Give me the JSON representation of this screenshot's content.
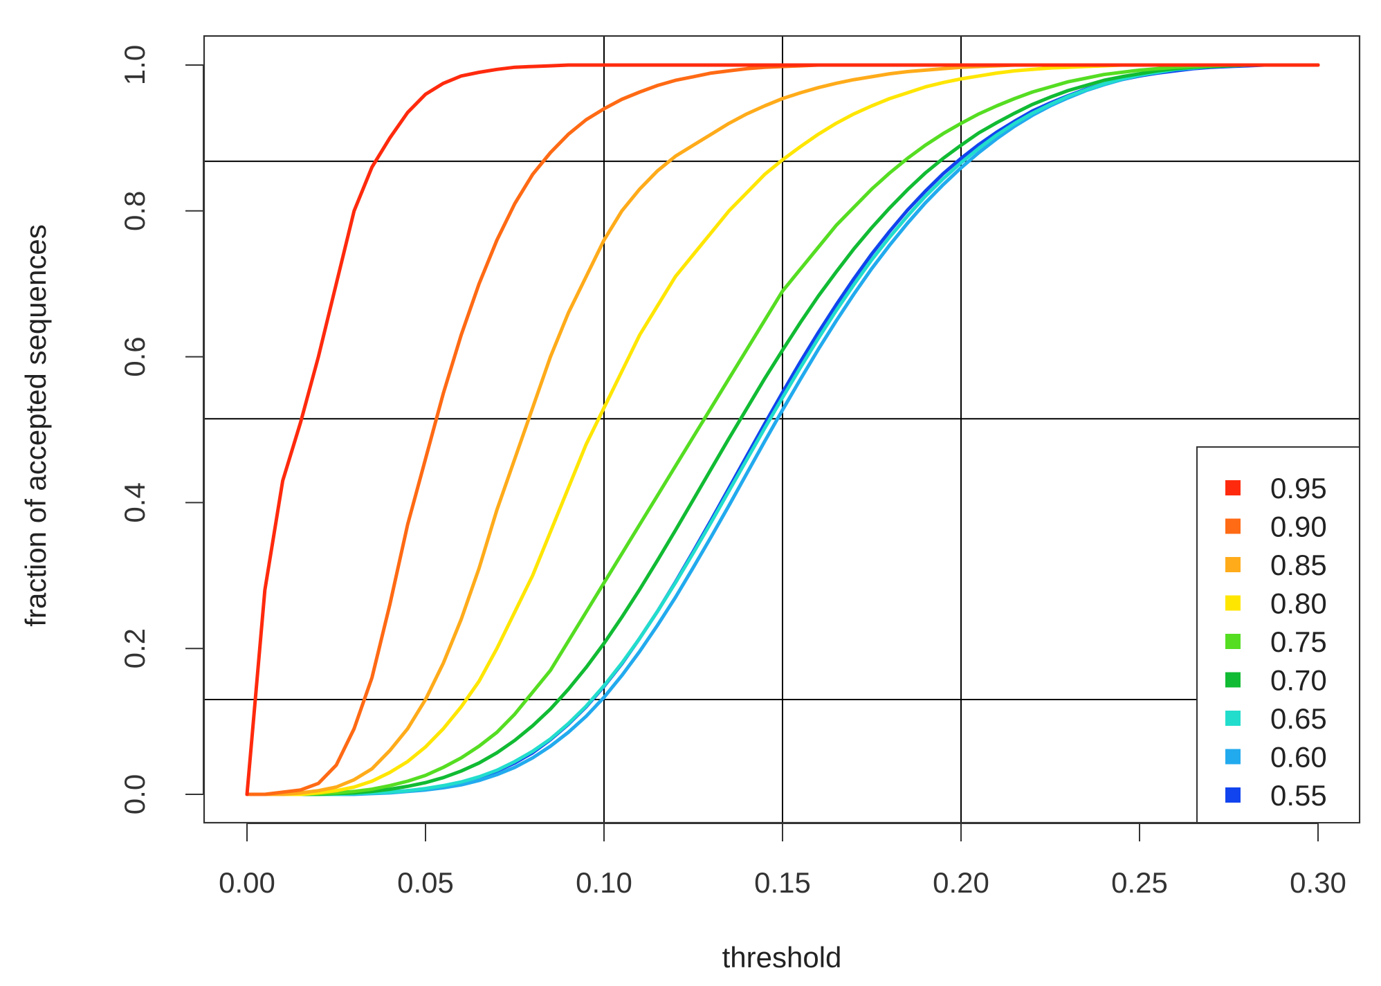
{
  "chart_data": {
    "type": "line",
    "title": "",
    "xlabel": "threshold",
    "ylabel": "fraction of accepted sequences",
    "xlim": [
      0.0,
      0.3
    ],
    "ylim": [
      0.0,
      1.0
    ],
    "x_ticks": [
      "0.00",
      "0.05",
      "0.10",
      "0.15",
      "0.20",
      "0.25",
      "0.30"
    ],
    "y_ticks": [
      "0.0",
      "0.2",
      "0.4",
      "0.6",
      "0.8",
      "1.0"
    ],
    "reference_lines": {
      "vertical_x": [
        0.1,
        0.15,
        0.2
      ],
      "horizontal_y": [
        0.13,
        0.515,
        0.868
      ]
    },
    "legend_position": "bottom-right",
    "x": [
      0.0,
      0.005,
      0.01,
      0.015,
      0.02,
      0.025,
      0.03,
      0.035,
      0.04,
      0.045,
      0.05,
      0.055,
      0.06,
      0.065,
      0.07,
      0.075,
      0.08,
      0.085,
      0.09,
      0.095,
      0.1,
      0.105,
      0.11,
      0.115,
      0.12,
      0.125,
      0.13,
      0.135,
      0.14,
      0.145,
      0.15,
      0.155,
      0.16,
      0.165,
      0.17,
      0.175,
      0.18,
      0.185,
      0.19,
      0.195,
      0.2,
      0.205,
      0.21,
      0.215,
      0.22,
      0.225,
      0.23,
      0.235,
      0.24,
      0.245,
      0.25,
      0.255,
      0.26,
      0.265,
      0.27,
      0.275,
      0.28,
      0.285,
      0.29,
      0.295,
      0.3
    ],
    "series": [
      {
        "name": "0.95",
        "color": "#ff2a0d",
        "values": [
          0.0,
          0.28,
          0.43,
          0.51,
          0.6,
          0.7,
          0.8,
          0.86,
          0.9,
          0.935,
          0.96,
          0.975,
          0.985,
          0.99,
          0.994,
          0.997,
          0.998,
          0.999,
          1.0,
          1.0,
          1.0,
          1.0,
          1.0,
          1.0,
          1.0,
          1.0,
          1.0,
          1.0,
          1.0,
          1.0,
          1.0,
          1.0,
          1.0,
          1.0,
          1.0,
          1.0,
          1.0,
          1.0,
          1.0,
          1.0,
          1.0,
          1.0,
          1.0,
          1.0,
          1.0,
          1.0,
          1.0,
          1.0,
          1.0,
          1.0,
          1.0,
          1.0,
          1.0,
          1.0,
          1.0,
          1.0,
          1.0,
          1.0,
          1.0,
          1.0,
          1.0
        ]
      },
      {
        "name": "0.90",
        "color": "#ff6a14",
        "values": [
          0.0,
          0.0,
          0.003,
          0.006,
          0.015,
          0.04,
          0.09,
          0.16,
          0.26,
          0.37,
          0.46,
          0.55,
          0.63,
          0.7,
          0.76,
          0.81,
          0.85,
          0.88,
          0.905,
          0.925,
          0.94,
          0.953,
          0.963,
          0.972,
          0.979,
          0.984,
          0.989,
          0.992,
          0.995,
          0.997,
          0.998,
          0.999,
          1.0,
          1.0,
          1.0,
          1.0,
          1.0,
          1.0,
          1.0,
          1.0,
          1.0,
          1.0,
          1.0,
          1.0,
          1.0,
          1.0,
          1.0,
          1.0,
          1.0,
          1.0,
          1.0,
          1.0,
          1.0,
          1.0,
          1.0,
          1.0,
          1.0,
          1.0,
          1.0,
          1.0,
          1.0
        ]
      },
      {
        "name": "0.85",
        "color": "#ffab1a",
        "values": [
          0.0,
          0.0,
          0.0,
          0.002,
          0.005,
          0.01,
          0.02,
          0.035,
          0.06,
          0.09,
          0.13,
          0.18,
          0.24,
          0.31,
          0.39,
          0.46,
          0.53,
          0.6,
          0.66,
          0.71,
          0.76,
          0.8,
          0.83,
          0.855,
          0.875,
          0.89,
          0.905,
          0.92,
          0.933,
          0.944,
          0.954,
          0.962,
          0.969,
          0.975,
          0.98,
          0.984,
          0.988,
          0.991,
          0.993,
          0.995,
          0.997,
          0.998,
          0.999,
          1.0,
          1.0,
          1.0,
          1.0,
          1.0,
          1.0,
          1.0,
          1.0,
          1.0,
          1.0,
          1.0,
          1.0,
          1.0,
          1.0,
          1.0,
          1.0,
          1.0,
          1.0
        ]
      },
      {
        "name": "0.80",
        "color": "#ffe600",
        "values": [
          0.0,
          0.0,
          0.0,
          0.0,
          0.002,
          0.005,
          0.01,
          0.018,
          0.03,
          0.045,
          0.065,
          0.09,
          0.12,
          0.155,
          0.2,
          0.25,
          0.3,
          0.36,
          0.42,
          0.48,
          0.53,
          0.58,
          0.63,
          0.67,
          0.71,
          0.74,
          0.77,
          0.8,
          0.825,
          0.85,
          0.87,
          0.888,
          0.905,
          0.92,
          0.933,
          0.944,
          0.954,
          0.962,
          0.97,
          0.976,
          0.981,
          0.985,
          0.989,
          0.992,
          0.994,
          0.996,
          0.997,
          0.998,
          0.999,
          1.0,
          1.0,
          1.0,
          1.0,
          1.0,
          1.0,
          1.0,
          1.0,
          1.0,
          1.0,
          1.0,
          1.0
        ]
      },
      {
        "name": "0.75",
        "color": "#55dd22",
        "values": [
          0.0,
          0.0,
          0.0,
          0.0,
          0.001,
          0.002,
          0.004,
          0.007,
          0.012,
          0.018,
          0.026,
          0.037,
          0.05,
          0.066,
          0.085,
          0.11,
          0.14,
          0.17,
          0.21,
          0.25,
          0.29,
          0.33,
          0.37,
          0.41,
          0.45,
          0.49,
          0.53,
          0.57,
          0.61,
          0.65,
          0.69,
          0.72,
          0.75,
          0.78,
          0.805,
          0.83,
          0.852,
          0.872,
          0.89,
          0.906,
          0.92,
          0.933,
          0.944,
          0.954,
          0.963,
          0.97,
          0.977,
          0.982,
          0.987,
          0.99,
          0.993,
          0.995,
          0.997,
          0.998,
          0.999,
          1.0,
          1.0,
          1.0,
          1.0,
          1.0,
          1.0
        ]
      },
      {
        "name": "0.70",
        "color": "#11bb33",
        "values": [
          0.0,
          0.0,
          0.0,
          0.0,
          0.0,
          0.001,
          0.002,
          0.004,
          0.007,
          0.011,
          0.016,
          0.023,
          0.032,
          0.043,
          0.057,
          0.074,
          0.094,
          0.117,
          0.144,
          0.174,
          0.207,
          0.243,
          0.281,
          0.321,
          0.362,
          0.404,
          0.446,
          0.488,
          0.529,
          0.57,
          0.609,
          0.647,
          0.683,
          0.716,
          0.748,
          0.777,
          0.804,
          0.829,
          0.852,
          0.872,
          0.89,
          0.907,
          0.921,
          0.934,
          0.946,
          0.956,
          0.965,
          0.972,
          0.979,
          0.984,
          0.988,
          0.992,
          0.995,
          0.997,
          0.998,
          0.999,
          1.0,
          1.0,
          1.0,
          1.0,
          1.0
        ]
      },
      {
        "name": "0.65",
        "color": "#22ddcc",
        "values": [
          0.0,
          0.0,
          0.0,
          0.0,
          0.0,
          0.0,
          0.001,
          0.002,
          0.003,
          0.005,
          0.008,
          0.012,
          0.017,
          0.024,
          0.033,
          0.045,
          0.059,
          0.076,
          0.097,
          0.121,
          0.149,
          0.18,
          0.214,
          0.251,
          0.29,
          0.331,
          0.373,
          0.416,
          0.459,
          0.502,
          0.544,
          0.585,
          0.625,
          0.663,
          0.699,
          0.733,
          0.764,
          0.793,
          0.82,
          0.844,
          0.866,
          0.886,
          0.904,
          0.92,
          0.934,
          0.946,
          0.957,
          0.966,
          0.974,
          0.981,
          0.986,
          0.99,
          0.994,
          0.996,
          0.998,
          0.999,
          1.0,
          1.0,
          1.0,
          1.0,
          1.0
        ]
      },
      {
        "name": "0.60",
        "color": "#22aaee",
        "values": [
          0.0,
          0.0,
          0.0,
          0.0,
          0.0,
          0.0,
          0.0,
          0.001,
          0.002,
          0.004,
          0.006,
          0.009,
          0.013,
          0.019,
          0.027,
          0.037,
          0.05,
          0.066,
          0.085,
          0.107,
          0.133,
          0.163,
          0.196,
          0.232,
          0.27,
          0.311,
          0.353,
          0.396,
          0.44,
          0.484,
          0.527,
          0.569,
          0.61,
          0.649,
          0.686,
          0.721,
          0.753,
          0.783,
          0.811,
          0.836,
          0.859,
          0.88,
          0.899,
          0.916,
          0.931,
          0.944,
          0.955,
          0.965,
          0.973,
          0.98,
          0.986,
          0.99,
          0.994,
          0.996,
          0.998,
          0.999,
          1.0,
          1.0,
          1.0,
          1.0,
          1.0
        ]
      },
      {
        "name": "0.55",
        "color": "#1144ee",
        "values": [
          0.0,
          0.0,
          0.0,
          0.0,
          0.0,
          0.0,
          0.001,
          0.002,
          0.003,
          0.005,
          0.007,
          0.011,
          0.016,
          0.023,
          0.032,
          0.043,
          0.057,
          0.075,
          0.096,
          0.12,
          0.148,
          0.179,
          0.214,
          0.251,
          0.291,
          0.333,
          0.376,
          0.42,
          0.464,
          0.508,
          0.551,
          0.593,
          0.633,
          0.671,
          0.707,
          0.741,
          0.772,
          0.801,
          0.827,
          0.851,
          0.872,
          0.891,
          0.908,
          0.923,
          0.937,
          0.948,
          0.958,
          0.967,
          0.974,
          0.98,
          0.985,
          0.989,
          0.992,
          0.995,
          0.997,
          0.998,
          0.999,
          1.0,
          1.0,
          1.0,
          1.0
        ]
      }
    ]
  }
}
